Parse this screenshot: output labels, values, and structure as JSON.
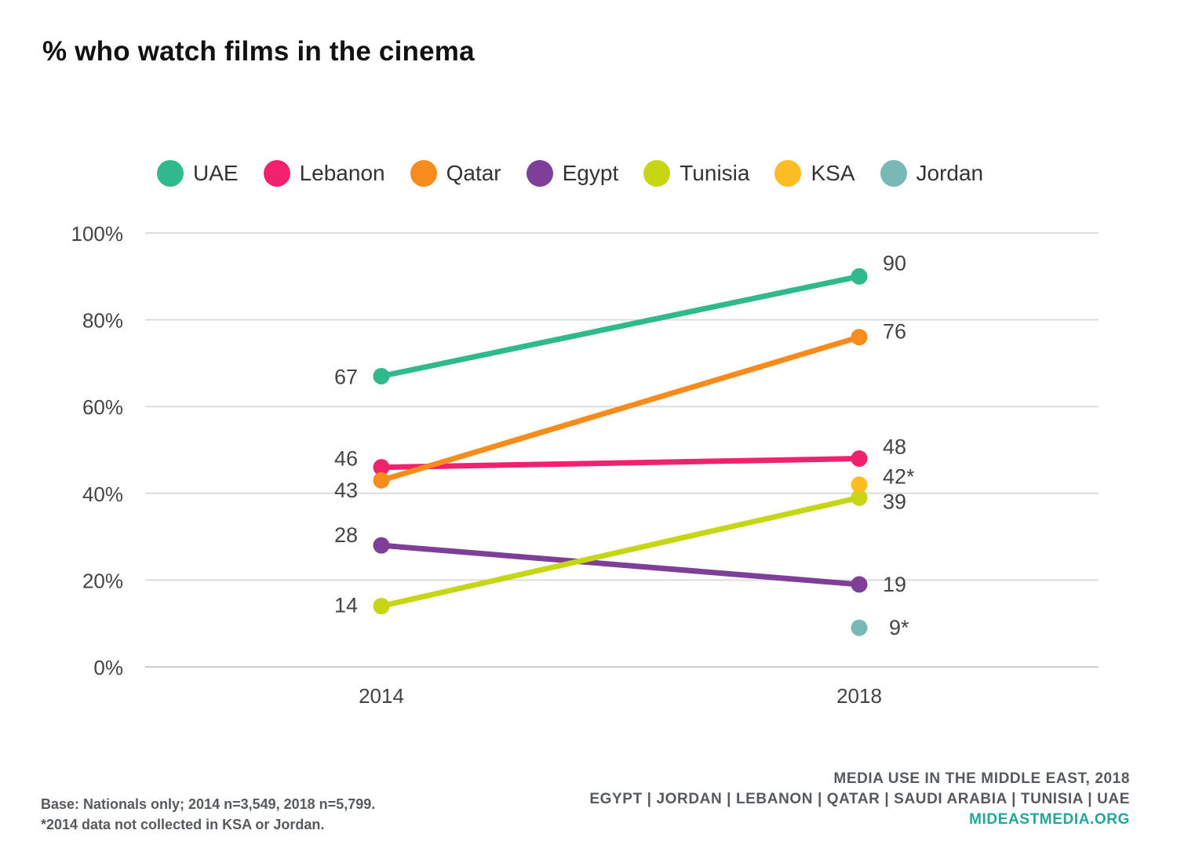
{
  "chart_data": {
    "type": "line",
    "title": "% who watch films in the cinema",
    "x": [
      "2014",
      "2018"
    ],
    "y_ticks": [
      "0%",
      "20%",
      "40%",
      "60%",
      "80%",
      "100%"
    ],
    "ylim": [
      0,
      100
    ],
    "grid": true,
    "legend_position": "top",
    "series": [
      {
        "name": "UAE",
        "color": "#2fb98c",
        "values": [
          67,
          90
        ],
        "labels": [
          "67",
          "90"
        ]
      },
      {
        "name": "Lebanon",
        "color": "#f0226e",
        "values": [
          46,
          48
        ],
        "labels": [
          "46",
          "48"
        ]
      },
      {
        "name": "Qatar",
        "color": "#f78b1c",
        "values": [
          43,
          76
        ],
        "labels": [
          "43",
          "76"
        ]
      },
      {
        "name": "Egypt",
        "color": "#7e3f98",
        "values": [
          28,
          19
        ],
        "labels": [
          "28",
          "19"
        ]
      },
      {
        "name": "Tunisia",
        "color": "#c5d614",
        "values": [
          14,
          39
        ],
        "labels": [
          "14",
          "39"
        ]
      },
      {
        "name": "KSA",
        "color": "#fbbd22",
        "values": [
          null,
          42
        ],
        "labels": [
          null,
          "42*"
        ]
      },
      {
        "name": "Jordan",
        "color": "#7ab8b6",
        "values": [
          null,
          9
        ],
        "labels": [
          null,
          "9*"
        ]
      }
    ]
  },
  "footer": {
    "note_line1": "Base: Nationals only; 2014 n=3,549, 2018 n=5,799.",
    "note_line2": "*2014 data not collected in KSA or Jordan.",
    "source_line1": "MEDIA USE IN THE MIDDLE EAST, 2018",
    "source_line2": "EGYPT | JORDAN | LEBANON | QATAR | SAUDI ARABIA | TUNISIA | UAE",
    "source_site": "MIDEASTMEDIA.ORG"
  }
}
